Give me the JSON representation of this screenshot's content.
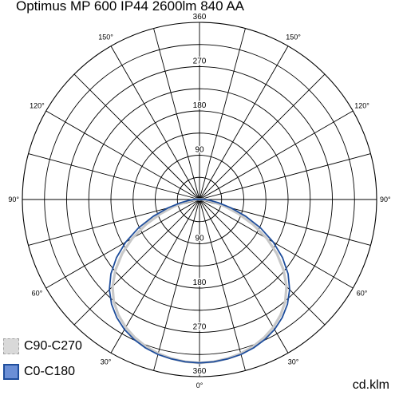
{
  "chart_data": {
    "type": "polar",
    "title": "Optimus MP 600 IP44 2600lm 840 AA",
    "unit": "cd.klm",
    "radial_max": 360,
    "radial_ticks": [
      {
        "value": 90,
        "label": "90"
      },
      {
        "value": 180,
        "label": "180"
      },
      {
        "value": 270,
        "label": "270"
      },
      {
        "value": 360,
        "label": "360"
      }
    ],
    "angle_labels": [
      {
        "angle": 0,
        "label": "0°"
      },
      {
        "angle": 30,
        "label": "30°"
      },
      {
        "angle": -30,
        "label": "30°"
      },
      {
        "angle": 60,
        "label": "60°"
      },
      {
        "angle": -60,
        "label": "60°"
      },
      {
        "angle": 90,
        "label": "90°"
      },
      {
        "angle": -90,
        "label": "90°"
      },
      {
        "angle": 120,
        "label": "120°"
      },
      {
        "angle": -120,
        "label": "120°"
      },
      {
        "angle": 150,
        "label": "150°"
      },
      {
        "angle": -150,
        "label": "150°"
      }
    ],
    "series": [
      {
        "name": "C90-C270",
        "color": "#c8c8c8",
        "fill": "#d9d9d9",
        "angles": [
          0,
          5,
          10,
          15,
          20,
          25,
          30,
          35,
          40,
          45,
          50,
          55,
          60,
          65,
          70,
          75,
          80,
          85,
          90,
          95,
          100
        ],
        "values": [
          332,
          331,
          328,
          324,
          318,
          310,
          300,
          287,
          271,
          250,
          223,
          192,
          158,
          120,
          84,
          53,
          28,
          14,
          8,
          5,
          2
        ]
      },
      {
        "name": "C0-C180",
        "color": "#1f4e9c",
        "fill": "#6b8fd6",
        "angles": [
          0,
          5,
          10,
          15,
          20,
          25,
          30,
          35,
          40,
          45,
          50,
          55,
          60,
          65,
          70,
          75,
          80,
          85,
          90,
          95,
          100
        ],
        "values": [
          332,
          331,
          329,
          326,
          321,
          314,
          305,
          293,
          278,
          259,
          235,
          206,
          173,
          137,
          100,
          67,
          40,
          22,
          12,
          6,
          2
        ]
      }
    ]
  }
}
